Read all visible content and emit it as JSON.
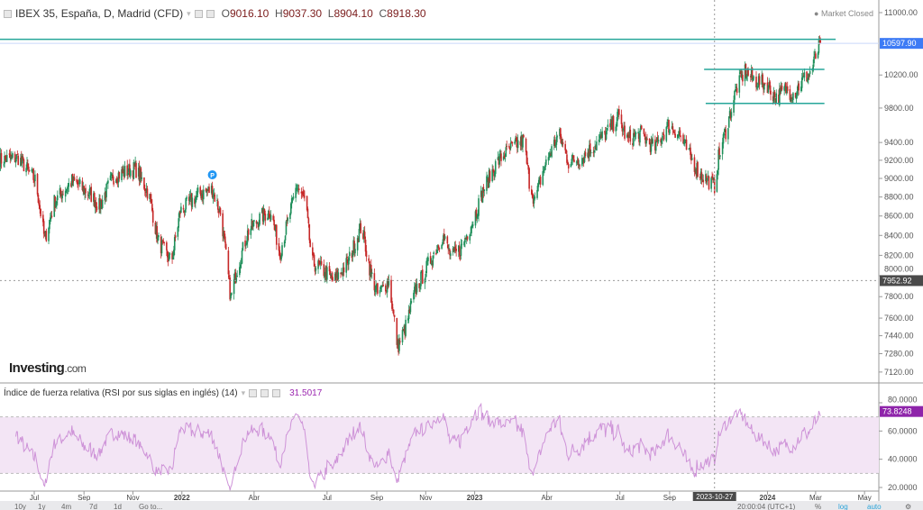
{
  "header": {
    "title": "IBEX 35, España, D, Madrid (CFD)",
    "open_label": "O",
    "open": "9016.10",
    "high_label": "H",
    "high": "9037.30",
    "low_label": "L",
    "low": "8904.10",
    "close_label": "C",
    "close": "8918.30",
    "market_status": "Market Closed"
  },
  "rsi_header": {
    "title": "Índice de fuerza relativa (RSI por sus siglas en inglés) (14)",
    "value": "31.5017"
  },
  "logo": {
    "brand": "Investing",
    "suffix": ".com"
  },
  "toolbar": {
    "ranges": [
      "10y",
      "1y",
      "4m",
      "7d",
      "1d",
      "Go to..."
    ],
    "clock": "20:00:04 (UTC+1)",
    "percent": "%",
    "log": "log",
    "auto": "auto"
  },
  "colors": {
    "up": "#26a69a",
    "down": "#ef5350",
    "candle_up_body": "#1f8f5a",
    "candle_down_body": "#c62828",
    "hline": "#26a69a",
    "rsi_line": "#ce93d8",
    "rsi_band": "#f3e5f5",
    "last_price_bg": "#3d7bf5",
    "crosshair_bg": "#4a4a4a",
    "rsi_value_bg": "#8e24aa"
  },
  "chart_data": [
    {
      "type": "candlestick",
      "yscale": "log",
      "ylim": [
        7050,
        11100
      ],
      "yticks": [
        11000,
        10200,
        9800,
        9400,
        9200,
        9000,
        8800,
        8600,
        8400,
        8200,
        8000,
        7800,
        7600,
        7440,
        7280,
        7120
      ],
      "xticks": [
        {
          "label": "Jul",
          "date": "2021-07-01"
        },
        {
          "label": "Sep",
          "date": "2021-09-01"
        },
        {
          "label": "Nov",
          "date": "2021-11-01"
        },
        {
          "label": "2022",
          "date": "2022-01-01"
        },
        {
          "label": "Abr",
          "date": "2022-04-01"
        },
        {
          "label": "Jul",
          "date": "2022-07-01"
        },
        {
          "label": "Sep",
          "date": "2022-09-01"
        },
        {
          "label": "Nov",
          "date": "2022-11-01"
        },
        {
          "label": "2023",
          "date": "2023-01-01"
        },
        {
          "label": "Abr",
          "date": "2023-04-01"
        },
        {
          "label": "Jul",
          "date": "2023-07-01"
        },
        {
          "label": "Sep",
          "date": "2023-09-01"
        },
        {
          "label": "2024",
          "date": "2024-01-01"
        },
        {
          "label": "Mar",
          "date": "2024-03-01"
        },
        {
          "label": "May",
          "date": "2024-05-01"
        }
      ],
      "xrange": [
        "2021-05-19",
        "2024-06-10"
      ],
      "close_series": [
        [
          "2021-05-19",
          9200
        ],
        [
          "2021-06-11",
          9230
        ],
        [
          "2021-07-03",
          8970
        ],
        [
          "2021-07-14",
          8350
        ],
        [
          "2021-07-26",
          8750
        ],
        [
          "2021-08-17",
          8970
        ],
        [
          "2021-09-09",
          8830
        ],
        [
          "2021-09-20",
          8700
        ],
        [
          "2021-10-07",
          9020
        ],
        [
          "2021-11-04",
          9110
        ],
        [
          "2021-11-21",
          8830
        ],
        [
          "2021-12-02",
          8350
        ],
        [
          "2021-12-19",
          8130
        ],
        [
          "2021-12-30",
          8650
        ],
        [
          "2022-01-22",
          8830
        ],
        [
          "2022-02-08",
          8880
        ],
        [
          "2022-02-19",
          8600
        ],
        [
          "2022-03-03",
          7780
        ],
        [
          "2022-03-10",
          8040
        ],
        [
          "2022-03-25",
          8450
        ],
        [
          "2022-04-11",
          8600
        ],
        [
          "2022-04-22",
          8650
        ],
        [
          "2022-05-03",
          8220
        ],
        [
          "2022-05-15",
          8600
        ],
        [
          "2022-05-24",
          8920
        ],
        [
          "2022-06-04",
          8750
        ],
        [
          "2022-06-12",
          8130
        ],
        [
          "2022-06-28",
          8040
        ],
        [
          "2022-07-10",
          7950
        ],
        [
          "2022-07-27",
          8130
        ],
        [
          "2022-08-13",
          8500
        ],
        [
          "2022-08-24",
          8040
        ],
        [
          "2022-09-02",
          7820
        ],
        [
          "2022-09-16",
          7950
        ],
        [
          "2022-09-27",
          7340
        ],
        [
          "2022-10-08",
          7540
        ],
        [
          "2022-10-19",
          7860
        ],
        [
          "2022-10-31",
          8040
        ],
        [
          "2022-11-11",
          8220
        ],
        [
          "2022-11-22",
          8400
        ],
        [
          "2022-12-03",
          8180
        ],
        [
          "2022-12-15",
          8270
        ],
        [
          "2023-01-01",
          8600
        ],
        [
          "2023-01-12",
          8880
        ],
        [
          "2023-01-29",
          9180
        ],
        [
          "2023-02-15",
          9330
        ],
        [
          "2023-03-03",
          9430
        ],
        [
          "2023-03-10",
          8970
        ],
        [
          "2023-03-17",
          8750
        ],
        [
          "2023-03-25",
          9020
        ],
        [
          "2023-04-05",
          9280
        ],
        [
          "2023-04-16",
          9500
        ],
        [
          "2023-04-28",
          9180
        ],
        [
          "2023-05-15",
          9230
        ],
        [
          "2023-06-01",
          9380
        ],
        [
          "2023-06-18",
          9550
        ],
        [
          "2023-06-29",
          9700
        ],
        [
          "2023-07-10",
          9430
        ],
        [
          "2023-07-27",
          9500
        ],
        [
          "2023-08-13",
          9330
        ],
        [
          "2023-08-30",
          9600
        ],
        [
          "2023-09-13",
          9500
        ],
        [
          "2023-09-27",
          9230
        ],
        [
          "2023-10-08",
          9060
        ],
        [
          "2023-10-27",
          8918.3
        ],
        [
          "2023-11-01",
          9230
        ],
        [
          "2023-11-12",
          9600
        ],
        [
          "2023-11-23",
          10030
        ],
        [
          "2023-12-04",
          10250
        ],
        [
          "2023-12-15",
          10140
        ],
        [
          "2024-01-01",
          10080
        ],
        [
          "2024-01-12",
          9910
        ],
        [
          "2024-01-23",
          10030
        ],
        [
          "2024-02-03",
          9970
        ],
        [
          "2024-02-14",
          10140
        ],
        [
          "2024-02-25",
          10250
        ],
        [
          "2024-03-01",
          10420
        ],
        [
          "2024-03-07",
          10597.9
        ]
      ],
      "horizontal_lines": [
        {
          "price": 10650,
          "from": "2021-05-19",
          "to": "2024-03-26"
        },
        {
          "price": 10270,
          "from": "2023-10-14",
          "to": "2024-03-12"
        },
        {
          "price": 9855,
          "from": "2023-10-16",
          "to": "2024-03-12"
        }
      ],
      "last_price": "10597.90",
      "crosshair_price": "7952.92",
      "crosshair_date": "2023-10-27",
      "marker": {
        "label": "P",
        "date": "2022-02-08"
      }
    },
    {
      "type": "line",
      "ylim": [
        17,
        88
      ],
      "yticks": [
        "80.0000",
        "60.0000",
        "40.0000",
        "20.0000"
      ],
      "band": [
        30,
        70
      ],
      "last_value": "73.8248"
    }
  ]
}
